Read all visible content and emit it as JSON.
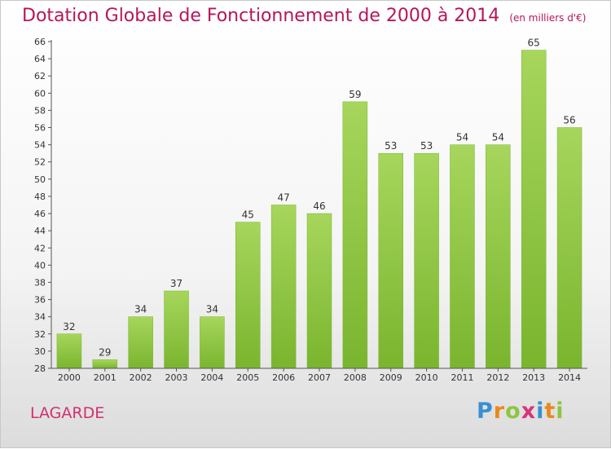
{
  "header": {
    "title": "Dotation Globale de Fonctionnement de 2000 à 2014",
    "subtitle": "(en milliers d'€)"
  },
  "place_name": "LAGARDE",
  "logo": {
    "text": "Proxiti",
    "letter_colors": [
      "#3a8fd1",
      "#e8891c",
      "#8dc63f",
      "#d9337a",
      "#3a8fd1",
      "#e8891c",
      "#8dc63f"
    ]
  },
  "chart_data": {
    "type": "bar",
    "title": "Dotation Globale de Fonctionnement de 2000 à 2014",
    "subtitle": "(en milliers d'€)",
    "categories": [
      "2000",
      "2001",
      "2002",
      "2003",
      "2004",
      "2005",
      "2006",
      "2007",
      "2008",
      "2009",
      "2010",
      "2011",
      "2012",
      "2013",
      "2014"
    ],
    "values": [
      32,
      29,
      34,
      37,
      34,
      45,
      47,
      46,
      59,
      53,
      53,
      54,
      54,
      65,
      56
    ],
    "ylim": [
      28,
      66
    ],
    "ytick_step": 2,
    "grid": false,
    "bar_color": "#7ab52e",
    "bar_color_light": "#a6d65c",
    "text_color": "#333333",
    "axis_color": "#555555"
  }
}
